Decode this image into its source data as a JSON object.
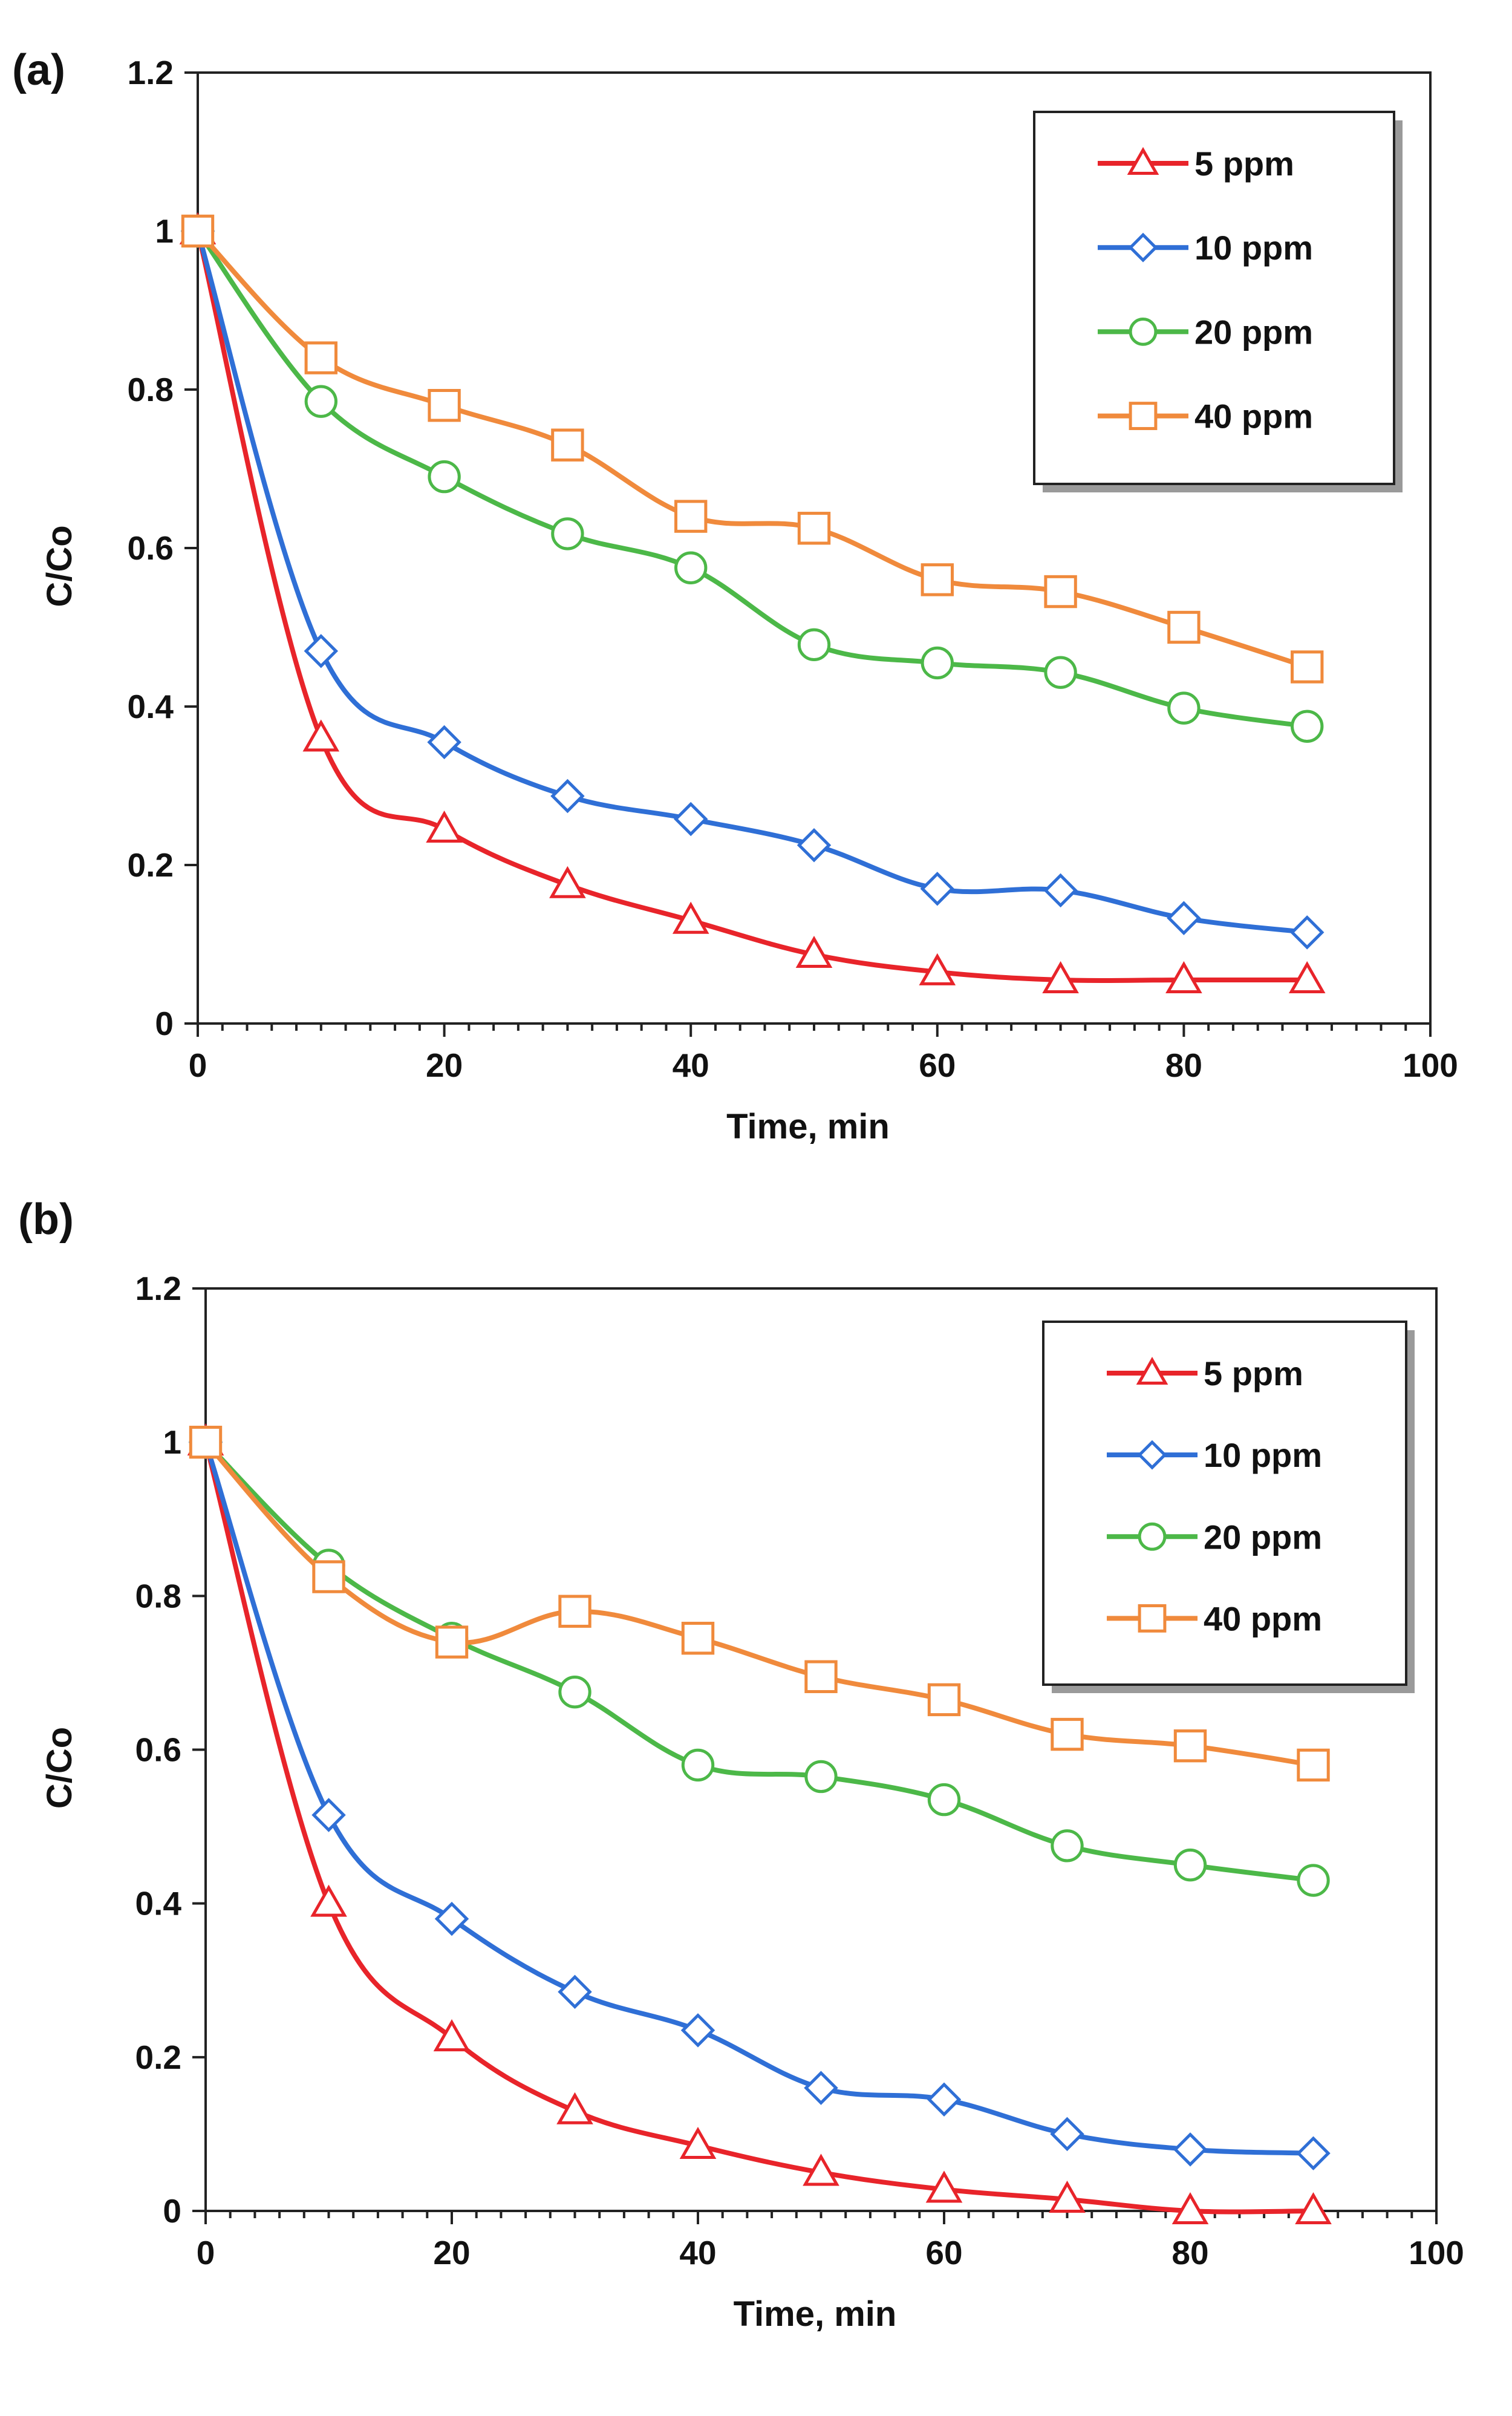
{
  "chart_data": [
    {
      "type": "line",
      "panel_label": "(a)",
      "xlabel": "Time, min",
      "ylabel": "C/Co",
      "xlim": [
        0,
        100
      ],
      "ylim": [
        0,
        1.2
      ],
      "xticks": [
        0,
        20,
        40,
        60,
        80,
        100
      ],
      "yticks": [
        0,
        0.2,
        0.4,
        0.6,
        0.8,
        1,
        1.2
      ],
      "ytick_labels": [
        "0",
        "0.2",
        "0.4",
        "0.6",
        "0.8",
        "1",
        "1.2"
      ],
      "legend_position": "top-right",
      "grid": false,
      "x": [
        0,
        10,
        20,
        30,
        40,
        50,
        60,
        70,
        80,
        90
      ],
      "series": [
        {
          "name": "5 ppm",
          "marker": "triangle",
          "color": "#e8242a",
          "values": [
            1.0,
            0.36,
            0.245,
            0.175,
            0.13,
            0.087,
            0.065,
            0.055,
            0.055,
            0.055
          ]
        },
        {
          "name": "10 ppm",
          "marker": "diamond",
          "color": "#2f6fd6",
          "values": [
            1.0,
            0.47,
            0.355,
            0.287,
            0.258,
            0.225,
            0.17,
            0.168,
            0.133,
            0.115
          ]
        },
        {
          "name": "20 ppm",
          "marker": "circle",
          "color": "#4cb848",
          "values": [
            1.0,
            0.785,
            0.69,
            0.618,
            0.575,
            0.478,
            0.455,
            0.443,
            0.398,
            0.375
          ]
        },
        {
          "name": "40 ppm",
          "marker": "square",
          "color": "#f08a3c",
          "values": [
            1.0,
            0.84,
            0.78,
            0.73,
            0.64,
            0.625,
            0.56,
            0.545,
            0.5,
            0.45
          ]
        }
      ]
    },
    {
      "type": "line",
      "panel_label": "(b)",
      "xlabel": "Time, min",
      "ylabel": "C/Co",
      "xlim": [
        0,
        100
      ],
      "ylim": [
        0,
        1.2
      ],
      "xticks": [
        0,
        20,
        40,
        60,
        80,
        100
      ],
      "yticks": [
        0,
        0.2,
        0.4,
        0.6,
        0.8,
        1,
        1.2
      ],
      "ytick_labels": [
        "0",
        "0.2",
        "0.4",
        "0.6",
        "0.8",
        "1",
        "1.2"
      ],
      "legend_position": "top-right",
      "grid": false,
      "x": [
        0,
        10,
        20,
        30,
        40,
        50,
        60,
        70,
        80,
        90
      ],
      "series": [
        {
          "name": "5 ppm",
          "marker": "triangle",
          "color": "#e8242a",
          "values": [
            1.0,
            0.4,
            0.225,
            0.13,
            0.085,
            0.05,
            0.028,
            0.015,
            0.0,
            0.0
          ]
        },
        {
          "name": "10 ppm",
          "marker": "diamond",
          "color": "#2f6fd6",
          "values": [
            1.0,
            0.515,
            0.38,
            0.285,
            0.235,
            0.16,
            0.145,
            0.1,
            0.08,
            0.075
          ]
        },
        {
          "name": "20 ppm",
          "marker": "circle",
          "color": "#4cb848",
          "values": [
            1.0,
            0.84,
            0.745,
            0.675,
            0.58,
            0.565,
            0.535,
            0.475,
            0.45,
            0.43
          ]
        },
        {
          "name": "40 ppm",
          "marker": "square",
          "color": "#f08a3c",
          "values": [
            1.0,
            0.825,
            0.74,
            0.78,
            0.745,
            0.695,
            0.665,
            0.62,
            0.605,
            0.58
          ]
        }
      ]
    }
  ]
}
